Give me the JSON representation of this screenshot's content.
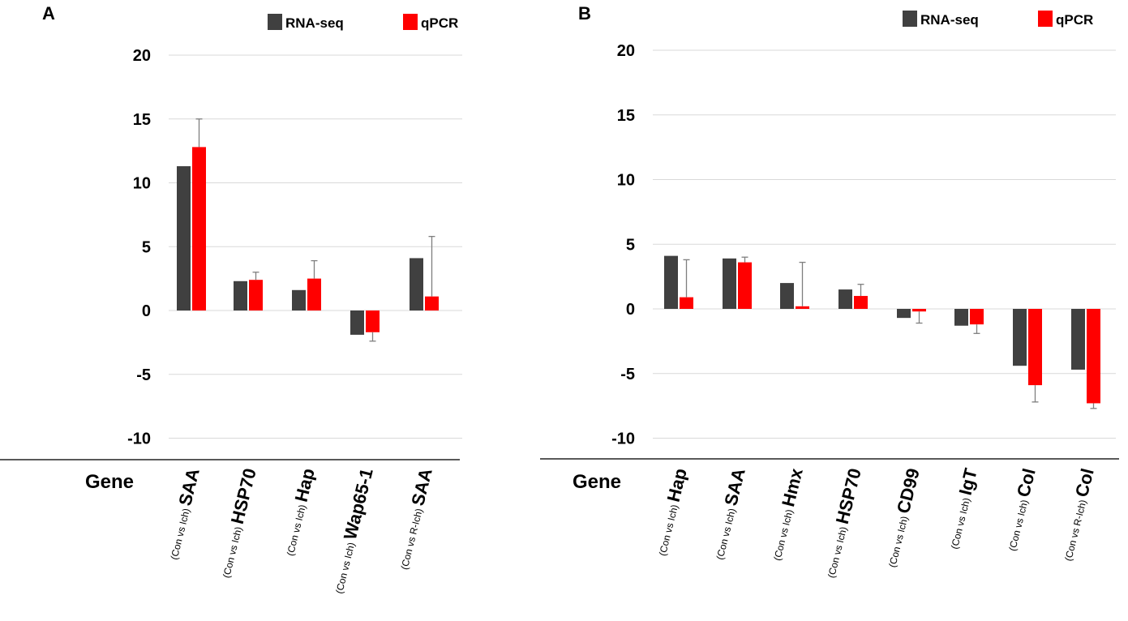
{
  "chart_data": [
    {
      "panel": "A",
      "type": "bar",
      "title": "",
      "xlabel": "Gene",
      "ylabel": "",
      "ylim": [
        -10,
        20
      ],
      "yticks": [
        20,
        15,
        10,
        5,
        0,
        -5,
        -10
      ],
      "grid": true,
      "legend": "top-right",
      "categories": [
        {
          "comparison": "(Con vs Ich)",
          "gene": "SAA"
        },
        {
          "comparison": "(Con vs Ich)",
          "gene": "HSP70"
        },
        {
          "comparison": "(Con vs Ich)",
          "gene": "Hap"
        },
        {
          "comparison": "(Con vs Ich)",
          "gene": "Wap65-1"
        },
        {
          "comparison": "(Con vs R-Ich)",
          "gene": "SAA"
        }
      ],
      "series": [
        {
          "name": "RNA-seq",
          "color": "#404040",
          "values": [
            11.3,
            2.3,
            1.6,
            -1.9,
            4.1
          ]
        },
        {
          "name": "qPCR",
          "color": "#ff0000",
          "values": [
            12.8,
            2.4,
            2.5,
            -1.7,
            1.1
          ],
          "error": [
            2.2,
            0.6,
            1.4,
            0.7,
            4.7
          ]
        }
      ]
    },
    {
      "panel": "B",
      "type": "bar",
      "title": "",
      "xlabel": "Gene",
      "ylabel": "",
      "ylim": [
        -10,
        20
      ],
      "yticks": [
        20,
        15,
        10,
        5,
        0,
        -5,
        -10
      ],
      "grid": true,
      "legend": "top-right",
      "categories": [
        {
          "comparison": "(Con vs Ich)",
          "gene": "Hap"
        },
        {
          "comparison": "(Con vs Ich)",
          "gene": "SAA"
        },
        {
          "comparison": "(Con vs Ich)",
          "gene": "Hmx"
        },
        {
          "comparison": "(Con vs Ich)",
          "gene": "HSP70"
        },
        {
          "comparison": "(Con vs Ich)",
          "gene": "CD99"
        },
        {
          "comparison": "(Con vs Ich)",
          "gene": "IgT"
        },
        {
          "comparison": "(Con vs Ich)",
          "gene": "Col"
        },
        {
          "comparison": "(Con vs R-Ich)",
          "gene": "Col"
        }
      ],
      "series": [
        {
          "name": "RNA-seq",
          "color": "#404040",
          "values": [
            4.1,
            3.9,
            2.0,
            1.5,
            -0.7,
            -1.3,
            -4.4,
            -4.7
          ]
        },
        {
          "name": "qPCR",
          "color": "#ff0000",
          "values": [
            0.9,
            3.6,
            0.2,
            1.0,
            -0.2,
            -1.2,
            -5.9,
            -7.3
          ]
        },
        {
          "name": "qPCR-error",
          "values": [
            2.9,
            0.4,
            3.4,
            0.9,
            -0.9,
            -0.7,
            -1.3,
            -0.4
          ]
        }
      ]
    }
  ]
}
